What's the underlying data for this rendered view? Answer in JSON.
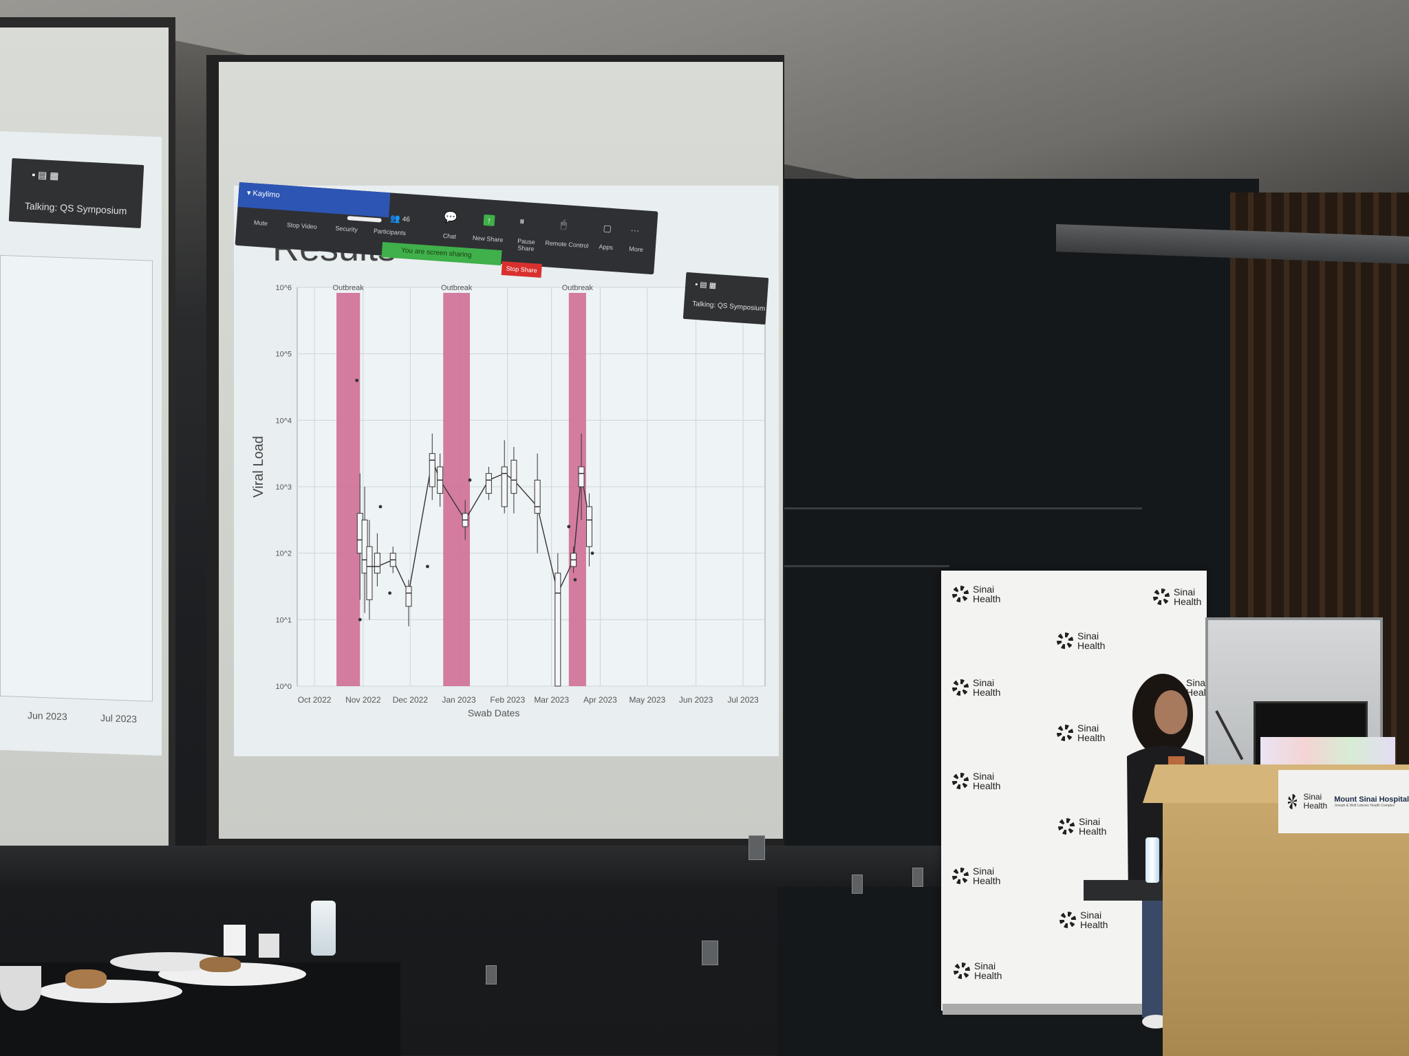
{
  "slide_left": {
    "x_ticks": [
      "Jun 2023",
      "Jul 2023"
    ],
    "talking": "Talking: QS Symposium"
  },
  "slide_main": {
    "title": "Results",
    "talking": "Talking: QS Symposium",
    "zoom": {
      "user": "Kaylimo",
      "participants_count": "46",
      "labels": [
        "Mute",
        "Stop Video",
        "Security",
        "Participants",
        "Chat",
        "New Share",
        "Pause Share",
        "Remote Control",
        "Apps",
        "More"
      ],
      "sharing_notice": "You are screen sharing",
      "stop_share": "Stop Share"
    }
  },
  "chart_data": {
    "type": "box",
    "title": "",
    "xlabel": "Swab Dates",
    "ylabel": "Viral Load",
    "y_scale": "log",
    "y_ticks": [
      "10^0",
      "10^1",
      "10^2",
      "10^3",
      "10^4",
      "10^5",
      "10^6"
    ],
    "x_ticks": [
      "Oct 2022",
      "Nov 2022",
      "Dec 2022",
      "Jan 2023",
      "Feb 2023",
      "Mar 2023",
      "Apr 2023",
      "May 2023",
      "Jun 2023",
      "Jul 2023"
    ],
    "outbreaks": [
      {
        "label": "Outbreak",
        "start": "2022-10-15",
        "end": "2022-10-30"
      },
      {
        "label": "Outbreak",
        "start": "2022-12-22",
        "end": "2023-01-08"
      },
      {
        "label": "Outbreak",
        "start": "2023-03-12",
        "end": "2023-03-23"
      }
    ],
    "outbreak_color": "#cf6f96",
    "boxes": [
      {
        "date": "2022-10-30",
        "q1": 2.0,
        "median": 2.2,
        "q3": 2.6,
        "low": 1.3,
        "high": 3.2
      },
      {
        "date": "2022-11-02",
        "q1": 1.7,
        "median": 1.9,
        "q3": 2.5,
        "low": 1.1,
        "high": 3.0
      },
      {
        "date": "2022-11-05",
        "q1": 1.3,
        "median": 1.8,
        "q3": 2.1,
        "low": 1.0,
        "high": 2.5
      },
      {
        "date": "2022-11-10",
        "q1": 1.7,
        "median": 1.8,
        "q3": 2.0,
        "low": 1.5,
        "high": 2.3
      },
      {
        "date": "2022-11-20",
        "q1": 1.8,
        "median": 1.9,
        "q3": 2.0,
        "low": 1.7,
        "high": 2.1
      },
      {
        "date": "2022-11-30",
        "q1": 1.2,
        "median": 1.4,
        "q3": 1.5,
        "low": 0.9,
        "high": 1.6
      },
      {
        "date": "2022-12-15",
        "q1": 3.0,
        "median": 3.4,
        "q3": 3.5,
        "low": 2.8,
        "high": 3.8
      },
      {
        "date": "2022-12-20",
        "q1": 2.9,
        "median": 3.1,
        "q3": 3.3,
        "low": 2.7,
        "high": 3.5
      },
      {
        "date": "2023-01-05",
        "q1": 2.4,
        "median": 2.5,
        "q3": 2.6,
        "low": 2.2,
        "high": 2.8
      },
      {
        "date": "2023-01-20",
        "q1": 2.9,
        "median": 3.1,
        "q3": 3.2,
        "low": 2.8,
        "high": 3.3
      },
      {
        "date": "2023-01-30",
        "q1": 2.7,
        "median": 3.2,
        "q3": 3.3,
        "low": 2.6,
        "high": 3.7
      },
      {
        "date": "2023-02-05",
        "q1": 2.9,
        "median": 3.1,
        "q3": 3.4,
        "low": 2.6,
        "high": 3.6
      },
      {
        "date": "2023-02-20",
        "q1": 2.6,
        "median": 2.7,
        "q3": 3.1,
        "low": 2.0,
        "high": 3.5
      },
      {
        "date": "2023-03-05",
        "q1": 0.0,
        "median": 1.4,
        "q3": 1.7,
        "low": 0.0,
        "high": 2.0
      },
      {
        "date": "2023-03-15",
        "q1": 1.8,
        "median": 1.9,
        "q3": 2.0,
        "low": 1.7,
        "high": 2.1
      },
      {
        "date": "2023-03-20",
        "q1": 3.0,
        "median": 3.2,
        "q3": 3.3,
        "low": 2.5,
        "high": 3.8
      },
      {
        "date": "2023-03-25",
        "q1": 2.1,
        "median": 2.5,
        "q3": 2.7,
        "low": 1.8,
        "high": 2.9
      }
    ],
    "outliers": [
      {
        "date": "2022-10-28",
        "y": 4.6
      },
      {
        "date": "2022-10-30",
        "y": 1.0
      },
      {
        "date": "2022-11-12",
        "y": 2.7
      },
      {
        "date": "2022-11-18",
        "y": 1.4
      },
      {
        "date": "2022-12-12",
        "y": 1.8
      },
      {
        "date": "2023-01-08",
        "y": 3.1
      },
      {
        "date": "2023-03-12",
        "y": 2.4
      },
      {
        "date": "2023-03-16",
        "y": 1.6
      },
      {
        "date": "2023-03-27",
        "y": 2.0
      }
    ]
  },
  "banner": {
    "logos": [
      "Sinai\nHealth",
      "Sinai\nHealth",
      "Sinai\nHealth",
      "Sinai\nHealth",
      "Sinai\nHealth",
      "Sinai\nHealth",
      "Sinai\nHealth",
      "Sinai\nHealth",
      "Sinai\nHealth",
      "Sinai\nHealth",
      "Sinai\nHealth"
    ]
  },
  "podium": {
    "logo": "Sinai\nHealth",
    "hospital": "Mount Sinai Hospital",
    "subtext": "Joseph & Wolf Lebovic Health Complex"
  },
  "colors": {
    "outbreak": "#cf6f96",
    "zoom_green": "#3fb04a",
    "zoom_red": "#d9302f",
    "zoom_blue": "#2d55b4"
  }
}
